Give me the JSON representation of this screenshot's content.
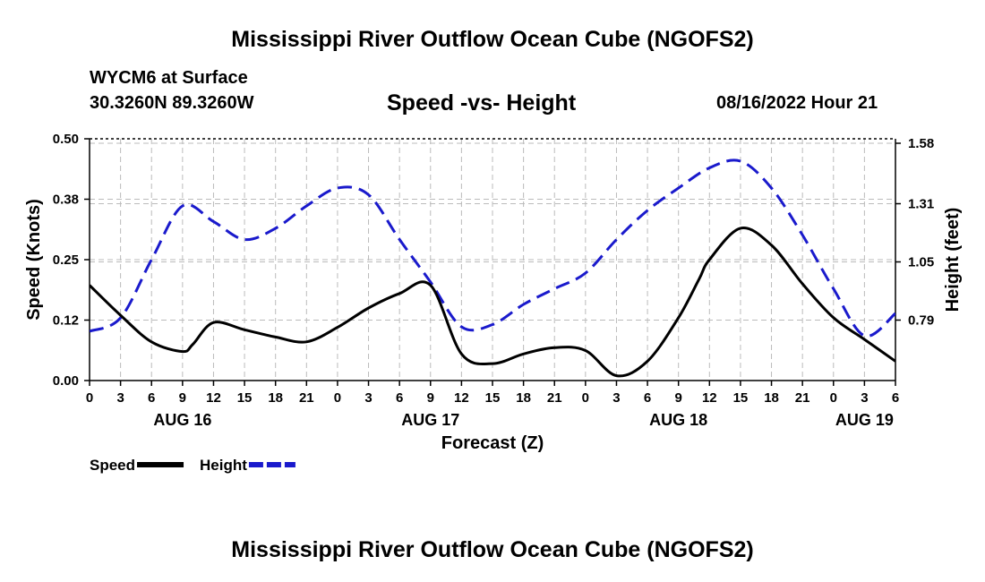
{
  "header": {
    "title": "Mississippi River Outflow Ocean Cube (NGOFS2)",
    "station": "WYCM6 at Surface",
    "coords": "30.3260N  89.3260W",
    "subtitle": "Speed -vs- Height",
    "datetime": "08/16/2022 Hour 21"
  },
  "footer": {
    "title": "Mississippi River Outflow Ocean Cube (NGOFS2)"
  },
  "chart_data": {
    "type": "line",
    "title": "Speed -vs- Height",
    "xlabel": "Forecast (Z)",
    "ylabel": "Speed (Knots)",
    "y2label": "Height (feet)",
    "xlim": [
      0,
      78
    ],
    "ylim": [
      0,
      0.5
    ],
    "y2lim": [
      0.52,
      1.6
    ],
    "x_ticks": [
      0,
      3,
      6,
      9,
      12,
      15,
      18,
      21,
      24,
      27,
      30,
      33,
      36,
      39,
      42,
      45,
      48,
      51,
      54,
      57,
      60,
      63,
      66,
      69,
      72,
      75,
      78
    ],
    "x_tick_labels": [
      "0",
      "3",
      "6",
      "9",
      "12",
      "15",
      "18",
      "21",
      "0",
      "3",
      "6",
      "9",
      "12",
      "15",
      "18",
      "21",
      "0",
      "3",
      "6",
      "9",
      "12",
      "15",
      "18",
      "21",
      "0",
      "3",
      "6"
    ],
    "date_labels": [
      {
        "x": 9,
        "label": "AUG 16"
      },
      {
        "x": 33,
        "label": "AUG 17"
      },
      {
        "x": 57,
        "label": "AUG 18"
      },
      {
        "x": 75,
        "label": "AUG 19"
      }
    ],
    "y_ticks": [
      0,
      0.125,
      0.25,
      0.375,
      0.5
    ],
    "y_tick_labels": [
      "0.00",
      "0.12",
      "0.25",
      "0.38",
      "0.50"
    ],
    "y2_ticks": [
      0.79,
      1.05,
      1.31,
      1.58
    ],
    "y2_tick_labels": [
      "0.79",
      "1.05",
      "1.31",
      "1.58"
    ],
    "grid": true,
    "legend_position": "bottom-left",
    "series": [
      {
        "name": "Speed",
        "axis": "left",
        "color": "#000000",
        "style": "solid",
        "x": [
          0,
          3,
          6,
          9,
          10,
          12,
          15,
          18,
          21,
          24,
          27,
          30,
          33,
          36,
          39,
          42,
          45,
          48,
          51,
          54,
          57,
          59,
          60,
          63,
          66,
          69,
          72,
          75,
          78
        ],
        "values": [
          0.197,
          0.135,
          0.08,
          0.06,
          0.075,
          0.12,
          0.105,
          0.09,
          0.08,
          0.11,
          0.15,
          0.18,
          0.197,
          0.055,
          0.035,
          0.055,
          0.068,
          0.062,
          0.01,
          0.04,
          0.13,
          0.21,
          0.25,
          0.315,
          0.28,
          0.2,
          0.13,
          0.085,
          0.04
        ]
      },
      {
        "name": "Height",
        "axis": "right",
        "color": "#1a1acc",
        "style": "dashed",
        "x": [
          0,
          3,
          6,
          9,
          12,
          15,
          18,
          21,
          24,
          27,
          30,
          33,
          36,
          39,
          42,
          45,
          48,
          51,
          54,
          57,
          60,
          63,
          66,
          69,
          72,
          75,
          78
        ],
        "values": [
          0.74,
          0.8,
          1.06,
          1.3,
          1.23,
          1.15,
          1.2,
          1.3,
          1.38,
          1.35,
          1.15,
          0.96,
          0.76,
          0.77,
          0.86,
          0.93,
          1.0,
          1.15,
          1.28,
          1.38,
          1.47,
          1.5,
          1.38,
          1.17,
          0.93,
          0.72,
          0.82
        ]
      }
    ]
  }
}
